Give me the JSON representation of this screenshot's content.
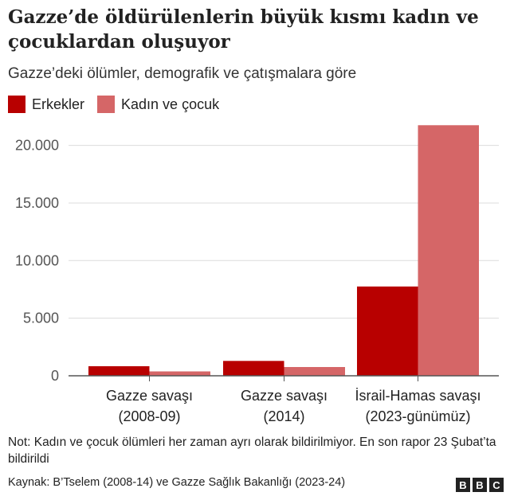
{
  "title": "Gazze’de öldürülenlerin büyük kısmı kadın ve çocuklardan oluşuyor",
  "subtitle": "Gazze’deki ölümler, demografik ve çatışmalara göre",
  "note": "Not: Kadın ve çocuk ölümleri her zaman ayrı olarak bildirilmiyor. En son rapor 23 Şubat’ta bildirildi",
  "source": "Kaynak: B’Tselem (2008-14) ve Gazze Sağlık Bakanlığı (2023-24)",
  "logo": [
    "B",
    "B",
    "C"
  ],
  "chart_data": {
    "type": "bar",
    "categories": [
      [
        "Gazze savaşı",
        "(2008-09)"
      ],
      [
        "Gazze savaşı",
        "(2014)"
      ],
      [
        "İsrail-Hamas savaşı",
        "(2023-günümüz)"
      ]
    ],
    "series": [
      {
        "name": "Erkekler",
        "color": "#b80000",
        "values": [
          830,
          1290,
          7750
        ]
      },
      {
        "name": "Kadın ve çocuk",
        "color": "#d56667",
        "values": [
          380,
          760,
          21750
        ]
      }
    ],
    "yticks": [
      0,
      5000,
      10000,
      15000,
      20000
    ],
    "ytick_labels": [
      "0",
      "5.000",
      "10.000",
      "15.000",
      "20.000"
    ],
    "ylim": [
      0,
      22000
    ],
    "grid": true,
    "legend": "top-left"
  }
}
